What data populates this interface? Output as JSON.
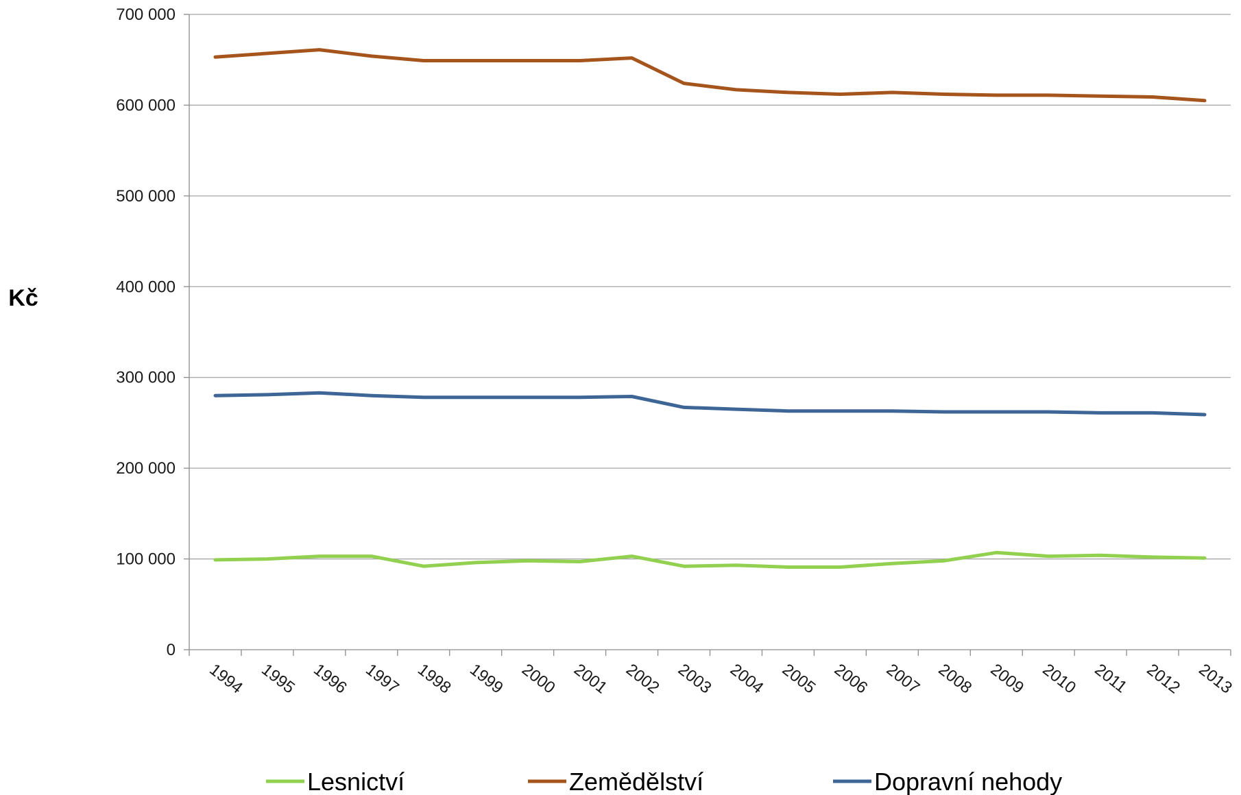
{
  "chart_data": {
    "type": "line",
    "title": "",
    "xlabel": "",
    "ylabel": "Kč",
    "ylim": [
      0,
      700000
    ],
    "yticks": [
      0,
      100000,
      200000,
      300000,
      400000,
      500000,
      600000,
      700000
    ],
    "ytick_labels": [
      "0",
      "100 000",
      "200 000",
      "300 000",
      "400 000",
      "500 000",
      "600 000",
      "700 000"
    ],
    "grid": true,
    "legend_position": "bottom",
    "categories": [
      "1994",
      "1995",
      "1996",
      "1997",
      "1998",
      "1999",
      "2000",
      "2001",
      "2002",
      "2003",
      "2004",
      "2005",
      "2006",
      "2007",
      "2008",
      "2009",
      "2010",
      "2011",
      "2012",
      "2013"
    ],
    "series": [
      {
        "name": "Lesnictví",
        "color": "#92d050",
        "values": [
          99000,
          100000,
          103000,
          103000,
          92000,
          96000,
          98000,
          97000,
          103000,
          92000,
          93000,
          91000,
          91000,
          95000,
          98000,
          107000,
          103000,
          104000,
          102000,
          101000
        ]
      },
      {
        "name": "Zemědělství",
        "color": "#a5541b",
        "values": [
          653000,
          657000,
          661000,
          654000,
          649000,
          649000,
          649000,
          649000,
          652000,
          624000,
          617000,
          614000,
          612000,
          614000,
          612000,
          611000,
          611000,
          610000,
          609000,
          605000
        ]
      },
      {
        "name": "Dopravní nehody",
        "color": "#3d6596",
        "values": [
          280000,
          281000,
          283000,
          280000,
          278000,
          278000,
          278000,
          278000,
          279000,
          267000,
          265000,
          263000,
          263000,
          263000,
          262000,
          262000,
          262000,
          261000,
          261000,
          259000
        ]
      }
    ]
  }
}
